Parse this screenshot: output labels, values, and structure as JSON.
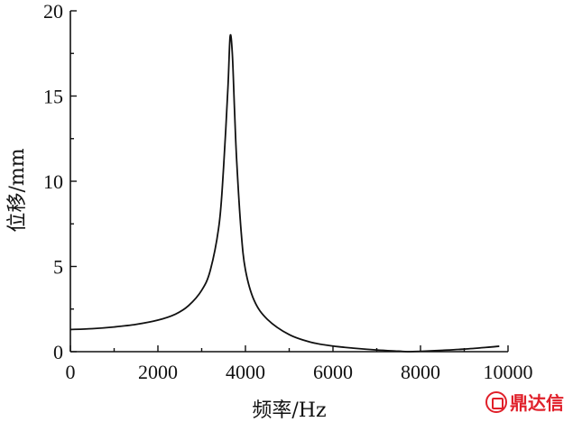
{
  "chart_data": {
    "type": "line",
    "title": "",
    "xlabel": "频率/Hz",
    "ylabel": "位移/mm",
    "xlim": [
      0,
      10000
    ],
    "ylim": [
      0,
      20
    ],
    "x_ticks": [
      0,
      2000,
      4000,
      6000,
      8000,
      10000
    ],
    "y_ticks": [
      0,
      5,
      10,
      15,
      20
    ],
    "grid": false,
    "legend": "none",
    "series": [
      {
        "color": "#111111",
        "x": [
          0,
          500,
          1000,
          1500,
          2000,
          2400,
          2700,
          3000,
          3200,
          3400,
          3500,
          3600,
          3650,
          3700,
          3750,
          3800,
          3900,
          4000,
          4200,
          4500,
          5000,
          5500,
          6000,
          6500,
          7000,
          7500,
          7700,
          8000,
          8500,
          9000,
          9500,
          9800
        ],
        "y": [
          1.3,
          1.35,
          1.45,
          1.6,
          1.85,
          2.2,
          2.7,
          3.6,
          4.8,
          7.5,
          10.8,
          15.5,
          18.5,
          17.5,
          14.2,
          11.2,
          7.1,
          4.8,
          3.0,
          1.9,
          1.0,
          0.55,
          0.33,
          0.2,
          0.1,
          0.03,
          0.0,
          0.02,
          0.08,
          0.15,
          0.25,
          0.32
        ]
      }
    ]
  },
  "watermark": {
    "text": "鼎达信",
    "logo": "dingdaxin-logo-icon"
  }
}
